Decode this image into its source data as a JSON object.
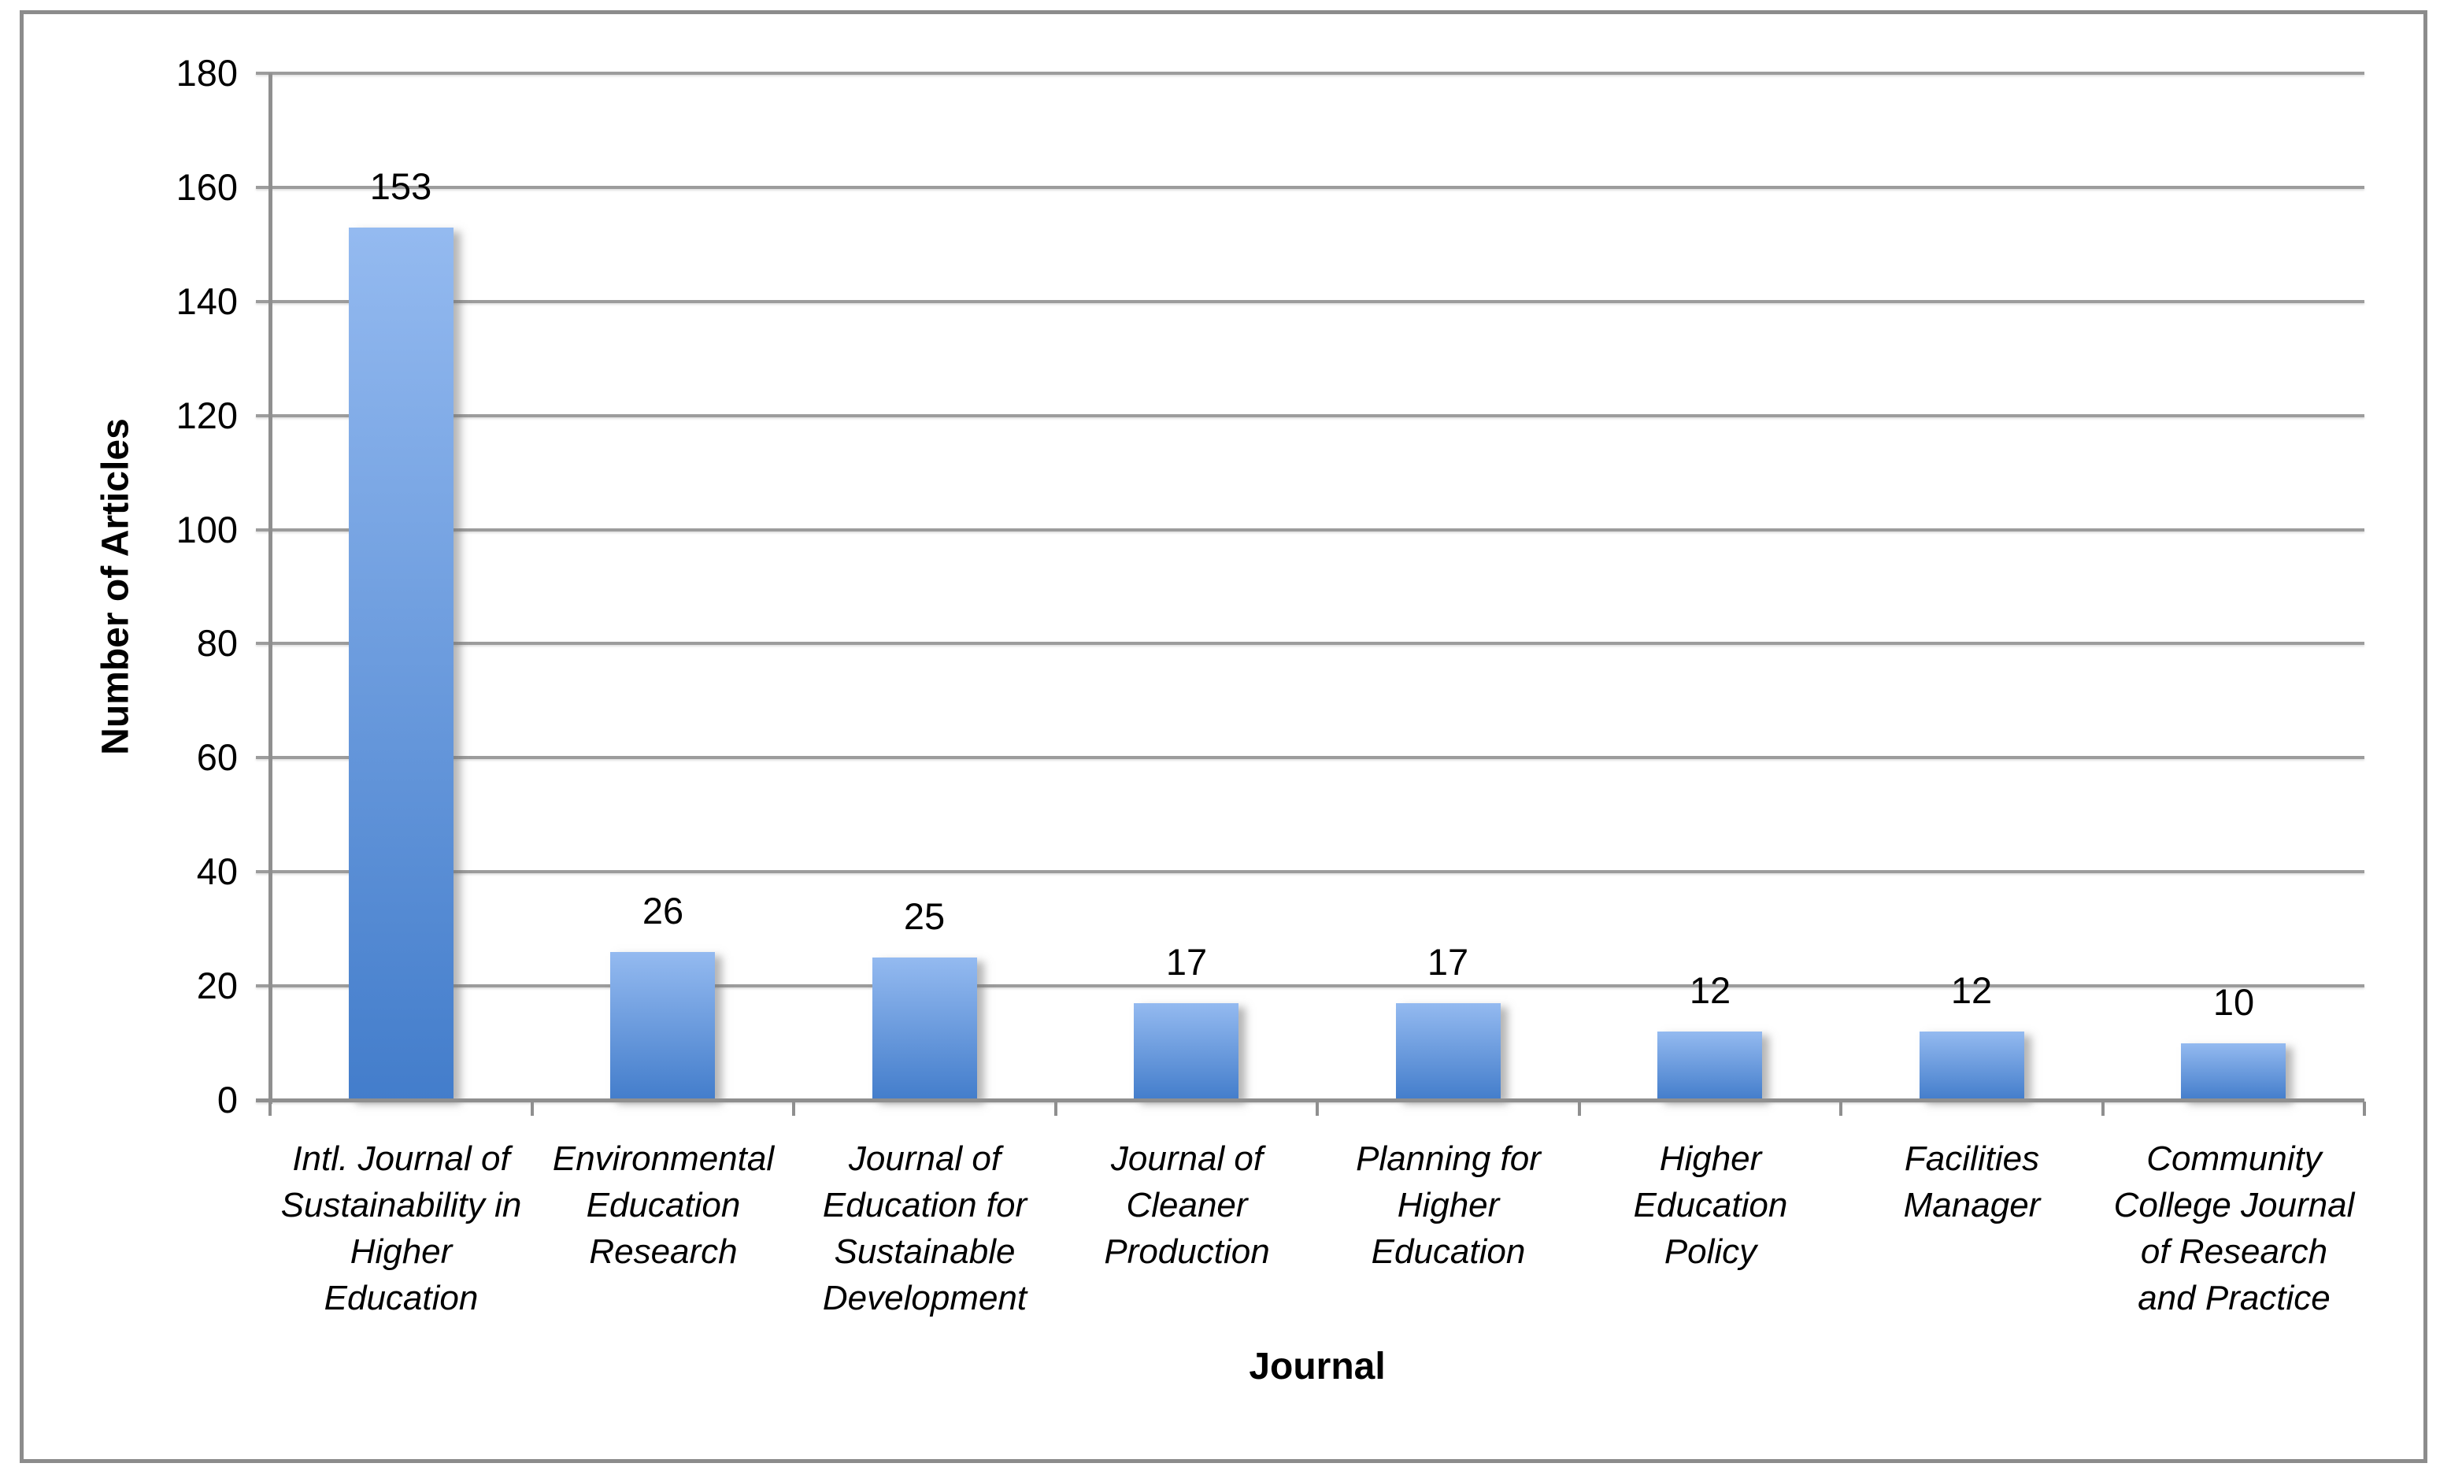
{
  "chart_data": {
    "type": "bar",
    "title": "",
    "xlabel": "Journal",
    "ylabel": "Number of Articles",
    "categories": [
      "Intl. Journal of Sustainability in Higher Education",
      "Environmental Education Research",
      "Journal of Education for Sustainable Development",
      "Journal of Cleaner Production",
      "Planning for Higher Education",
      "Higher Education Policy",
      "Facilities Manager",
      "Community College Journal of Research and Practice"
    ],
    "category_lines": [
      [
        "Intl. Journal of",
        "Sustainability in",
        "Higher",
        "Education"
      ],
      [
        "Environmental",
        "Education",
        "Research"
      ],
      [
        "Journal of",
        "Education for",
        "Sustainable",
        "Development"
      ],
      [
        "Journal of",
        "Cleaner",
        "Production"
      ],
      [
        "Planning for",
        "Higher",
        "Education"
      ],
      [
        "Higher",
        "Education",
        "Policy"
      ],
      [
        "Facilities",
        "Manager"
      ],
      [
        "Community",
        "College Journal",
        "of Research",
        "and Practice"
      ]
    ],
    "values": [
      153,
      26,
      25,
      17,
      17,
      12,
      12,
      10
    ],
    "ylim": [
      0,
      180
    ],
    "ytick_step": 20,
    "yticks": [
      0,
      20,
      40,
      60,
      80,
      100,
      120,
      140,
      160,
      180
    ],
    "grid": true,
    "legend": "none",
    "bar_data_labels_shown": true,
    "colors": {
      "bar_gradient_top": "#94BAF0",
      "bar_gradient_bottom": "#437DCB",
      "gridline": "#9C9C9C",
      "axis": "#8F8F8F",
      "frame_border": "#8C8C8C",
      "text": "#000000",
      "background": "#FFFFFF"
    }
  }
}
